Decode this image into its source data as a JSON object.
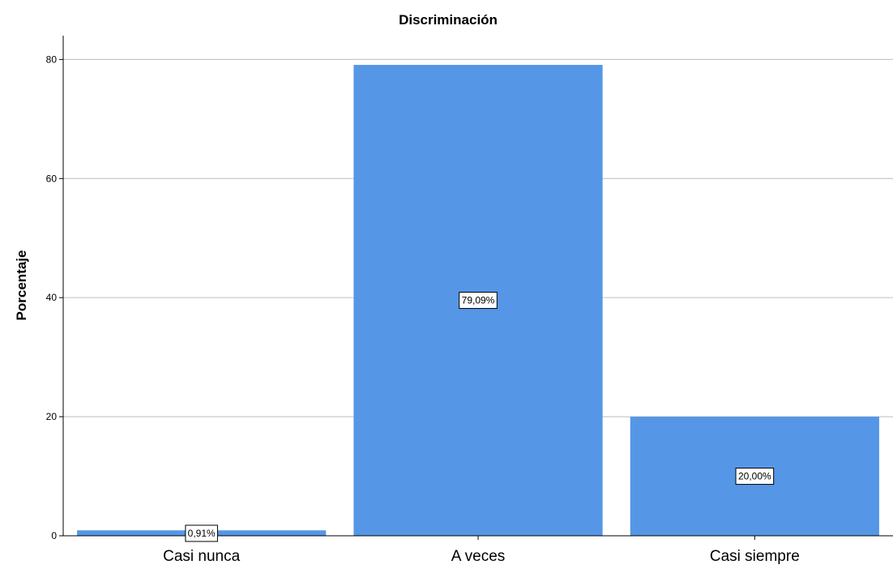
{
  "chart_data": {
    "type": "bar",
    "title": "Discriminación",
    "ylabel": "Porcentaje",
    "xlabel": "",
    "categories": [
      "Casi nunca",
      "A veces",
      "Casi siempre"
    ],
    "values": [
      0.91,
      79.09,
      20.0
    ],
    "data_labels": [
      "0,91%",
      "79,09%",
      "20,00%"
    ],
    "ylim": [
      0,
      84
    ],
    "yticks": [
      0,
      20,
      40,
      60,
      80
    ],
    "ytick_labels": [
      "0",
      "20",
      "40",
      "60",
      "80"
    ],
    "bar_color": "#5596e6",
    "grid": true
  }
}
